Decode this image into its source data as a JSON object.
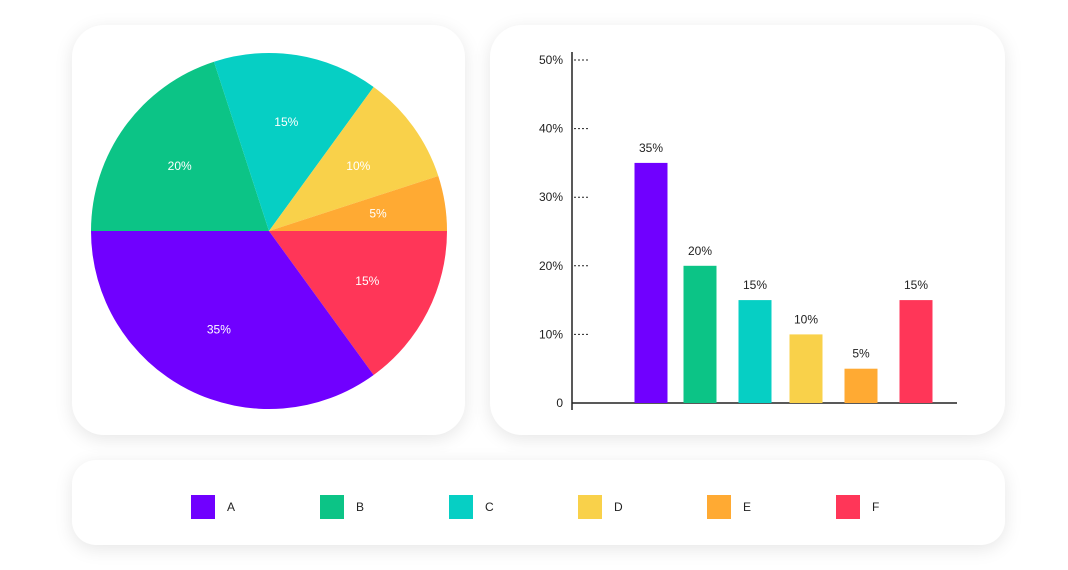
{
  "colors": {
    "A": "#7000FF",
    "B": "#0CC486",
    "C": "#06CFC4",
    "D": "#F9D14A",
    "E": "#FFAA33",
    "F": "#FF3658"
  },
  "chart_data": [
    {
      "type": "pie",
      "categories": [
        "A",
        "B",
        "C",
        "D",
        "E",
        "F"
      ],
      "values": [
        35,
        20,
        15,
        10,
        5,
        15
      ],
      "labels": [
        "35%",
        "20%",
        "15%",
        "10%",
        "5%",
        "15%"
      ]
    },
    {
      "type": "bar",
      "categories": [
        "A",
        "B",
        "C",
        "D",
        "E",
        "F"
      ],
      "values": [
        35,
        20,
        15,
        10,
        5,
        15
      ],
      "labels": [
        "35%",
        "20%",
        "15%",
        "10%",
        "5%",
        "15%"
      ],
      "ylim": [
        0,
        50
      ],
      "yticks": [
        0,
        10,
        20,
        30,
        40,
        50
      ],
      "ytick_labels": [
        "0",
        "10%",
        "20%",
        "30%",
        "40%",
        "50%"
      ]
    }
  ],
  "legend": {
    "items": [
      {
        "key": "A",
        "label": "A"
      },
      {
        "key": "B",
        "label": "B"
      },
      {
        "key": "C",
        "label": "C"
      },
      {
        "key": "D",
        "label": "D"
      },
      {
        "key": "E",
        "label": "E"
      },
      {
        "key": "F",
        "label": "F"
      }
    ]
  }
}
